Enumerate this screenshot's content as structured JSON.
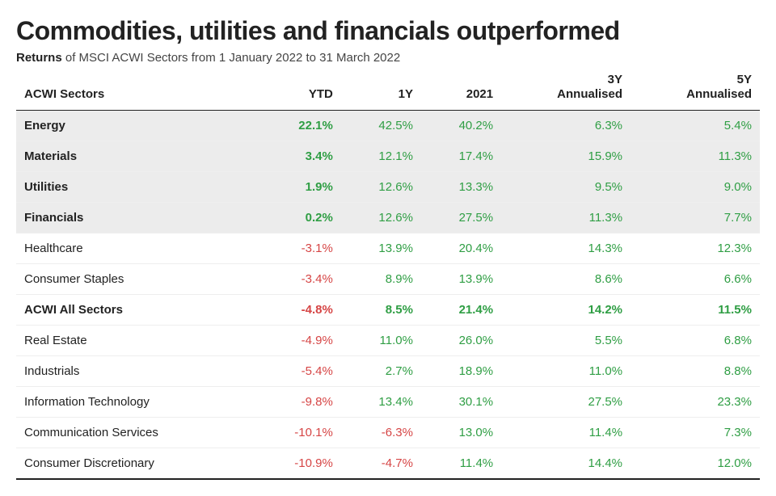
{
  "title": "Commodities, utilities and financials outperformed",
  "subtitle_bold": "Returns",
  "subtitle_rest": " of MSCI ACWI Sectors from 1 January 2022 to 31 March 2022",
  "columns": {
    "c0": "ACWI Sectors",
    "c1": "YTD",
    "c2": "1Y",
    "c3": "2021",
    "c4_a": "3Y",
    "c4_b": "Annualised",
    "c5_a": "5Y",
    "c5_b": "Annualised"
  },
  "colors": {
    "positive": "#2f9e44",
    "negative": "#d64545",
    "highlight_bg": "#ececec",
    "row_border": "#eeeeee",
    "header_border": "#222222"
  },
  "rows": [
    {
      "name": "Energy",
      "ytd": "22.1%",
      "ytd_sign": "pos",
      "y1": "42.5%",
      "y1_sign": "pos",
      "y2021": "40.2%",
      "y2021_sign": "pos",
      "y3": "6.3%",
      "y3_sign": "pos",
      "y5": "5.4%",
      "y5_sign": "pos",
      "highlight": true,
      "allbold": false
    },
    {
      "name": "Materials",
      "ytd": "3.4%",
      "ytd_sign": "pos",
      "y1": "12.1%",
      "y1_sign": "pos",
      "y2021": "17.4%",
      "y2021_sign": "pos",
      "y3": "15.9%",
      "y3_sign": "pos",
      "y5": "11.3%",
      "y5_sign": "pos",
      "highlight": true,
      "allbold": false
    },
    {
      "name": "Utilities",
      "ytd": "1.9%",
      "ytd_sign": "pos",
      "y1": "12.6%",
      "y1_sign": "pos",
      "y2021": "13.3%",
      "y2021_sign": "pos",
      "y3": "9.5%",
      "y3_sign": "pos",
      "y5": "9.0%",
      "y5_sign": "pos",
      "highlight": true,
      "allbold": false
    },
    {
      "name": "Financials",
      "ytd": "0.2%",
      "ytd_sign": "pos",
      "y1": "12.6%",
      "y1_sign": "pos",
      "y2021": "27.5%",
      "y2021_sign": "pos",
      "y3": "11.3%",
      "y3_sign": "pos",
      "y5": "7.7%",
      "y5_sign": "pos",
      "highlight": true,
      "allbold": false
    },
    {
      "name": "Healthcare",
      "ytd": "-3.1%",
      "ytd_sign": "neg",
      "y1": "13.9%",
      "y1_sign": "pos",
      "y2021": "20.4%",
      "y2021_sign": "pos",
      "y3": "14.3%",
      "y3_sign": "pos",
      "y5": "12.3%",
      "y5_sign": "pos",
      "highlight": false,
      "allbold": false
    },
    {
      "name": "Consumer Staples",
      "ytd": "-3.4%",
      "ytd_sign": "neg",
      "y1": "8.9%",
      "y1_sign": "pos",
      "y2021": "13.9%",
      "y2021_sign": "pos",
      "y3": "8.6%",
      "y3_sign": "pos",
      "y5": "6.6%",
      "y5_sign": "pos",
      "highlight": false,
      "allbold": false
    },
    {
      "name": "ACWI All Sectors",
      "ytd": "-4.8%",
      "ytd_sign": "neg",
      "y1": "8.5%",
      "y1_sign": "pos",
      "y2021": "21.4%",
      "y2021_sign": "pos",
      "y3": "14.2%",
      "y3_sign": "pos",
      "y5": "11.5%",
      "y5_sign": "pos",
      "highlight": false,
      "allbold": true
    },
    {
      "name": "Real Estate",
      "ytd": "-4.9%",
      "ytd_sign": "neg",
      "y1": "11.0%",
      "y1_sign": "pos",
      "y2021": "26.0%",
      "y2021_sign": "pos",
      "y3": "5.5%",
      "y3_sign": "pos",
      "y5": "6.8%",
      "y5_sign": "pos",
      "highlight": false,
      "allbold": false
    },
    {
      "name": "Industrials",
      "ytd": "-5.4%",
      "ytd_sign": "neg",
      "y1": "2.7%",
      "y1_sign": "pos",
      "y2021": "18.9%",
      "y2021_sign": "pos",
      "y3": "11.0%",
      "y3_sign": "pos",
      "y5": "8.8%",
      "y5_sign": "pos",
      "highlight": false,
      "allbold": false
    },
    {
      "name": "Information Technology",
      "ytd": "-9.8%",
      "ytd_sign": "neg",
      "y1": "13.4%",
      "y1_sign": "pos",
      "y2021": "30.1%",
      "y2021_sign": "pos",
      "y3": "27.5%",
      "y3_sign": "pos",
      "y5": "23.3%",
      "y5_sign": "pos",
      "highlight": false,
      "allbold": false
    },
    {
      "name": "Communication Services",
      "ytd": "-10.1%",
      "ytd_sign": "neg",
      "y1": "-6.3%",
      "y1_sign": "neg",
      "y2021": "13.0%",
      "y2021_sign": "pos",
      "y3": "11.4%",
      "y3_sign": "pos",
      "y5": "7.3%",
      "y5_sign": "pos",
      "highlight": false,
      "allbold": false
    },
    {
      "name": "Consumer Discretionary",
      "ytd": "-10.9%",
      "ytd_sign": "neg",
      "y1": "-4.7%",
      "y1_sign": "neg",
      "y2021": "11.4%",
      "y2021_sign": "pos",
      "y3": "14.4%",
      "y3_sign": "pos",
      "y5": "12.0%",
      "y5_sign": "pos",
      "highlight": false,
      "allbold": false
    }
  ]
}
